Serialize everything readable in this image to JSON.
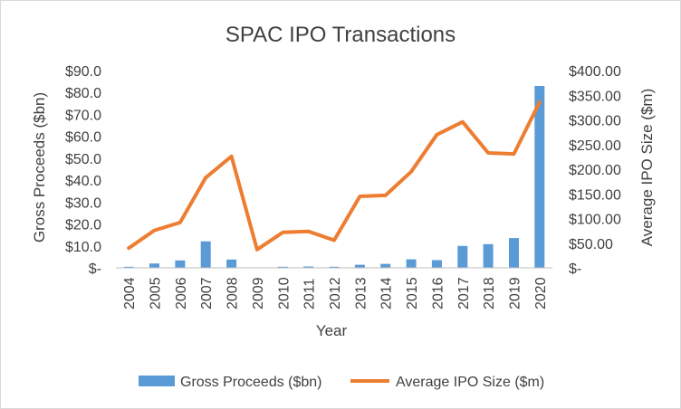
{
  "chart_data": {
    "type": "bar",
    "title": "SPAC IPO Transactions",
    "xlabel": "Year",
    "ylabel": "Gross Proceeds ($bn)",
    "y2label": "Average IPO Size ($m)",
    "categories": [
      "2004",
      "2005",
      "2006",
      "2007",
      "2008",
      "2009",
      "2010",
      "2011",
      "2012",
      "2013",
      "2014",
      "2015",
      "2016",
      "2017",
      "2018",
      "2019",
      "2020"
    ],
    "ylim": [
      0,
      90
    ],
    "y2lim": [
      0,
      400
    ],
    "y_ticks": [
      "$-",
      "$10.0",
      "$20.0",
      "$30.0",
      "$40.0",
      "$50.0",
      "$60.0",
      "$70.0",
      "$80.0",
      "$90.0"
    ],
    "y2_ticks": [
      "$-",
      "$50.00",
      "$100.00",
      "$150.00",
      "$200.00",
      "$250.00",
      "$300.00",
      "$350.00",
      "$400.00"
    ],
    "series": [
      {
        "name": "Gross Proceeds ($bn)",
        "type": "bar",
        "axis": "left",
        "color": "#5b9bd5",
        "values": [
          0.5,
          2.0,
          3.4,
          12.1,
          3.8,
          0.2,
          0.5,
          0.6,
          0.5,
          1.4,
          1.8,
          3.9,
          3.5,
          10.0,
          10.8,
          13.6,
          83.0
        ]
      },
      {
        "name": "Average IPO Size ($m)",
        "type": "line",
        "axis": "right",
        "color": "#ed7d31",
        "values": [
          40,
          76,
          92,
          183,
          226,
          37,
          72,
          74,
          56,
          145,
          147,
          195,
          270,
          296,
          233,
          231,
          336
        ]
      }
    ],
    "legend": "bottom",
    "grid": false
  }
}
